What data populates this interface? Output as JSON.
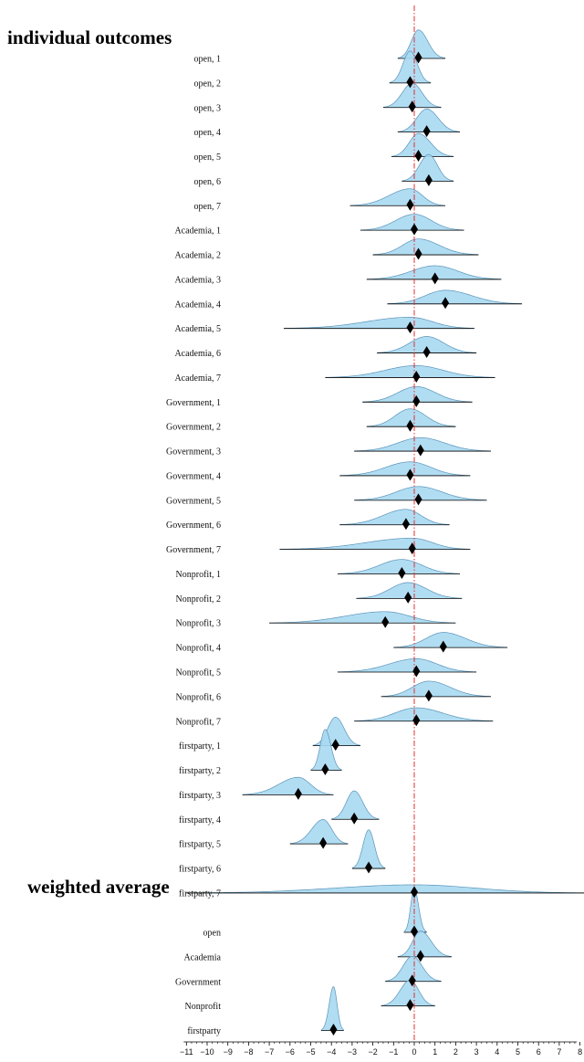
{
  "chart_data": {
    "type": "ridgeline",
    "xlim": [
      -11,
      8
    ],
    "xticks": [
      -11,
      -10,
      -9,
      -8,
      -7,
      -6,
      -5,
      -4,
      -3,
      -2,
      -1,
      0,
      1,
      2,
      3,
      4,
      5,
      6,
      7,
      8
    ],
    "reference_line_x": 0,
    "colors": {
      "fill": "#a9d9f2",
      "stroke": "#5a93b8",
      "reference_line": "#e03030",
      "marker": "#000000"
    },
    "sections": [
      {
        "title": "individual outcomes",
        "rows": [
          {
            "label": "open, 1",
            "estimate": 0.2,
            "lower": -0.8,
            "upper": 1.5
          },
          {
            "label": "open, 2",
            "estimate": -0.2,
            "lower": -1.2,
            "upper": 0.8
          },
          {
            "label": "open, 3",
            "estimate": -0.1,
            "lower": -1.5,
            "upper": 1.3
          },
          {
            "label": "open, 4",
            "estimate": 0.6,
            "lower": -0.8,
            "upper": 2.2
          },
          {
            "label": "open, 5",
            "estimate": 0.2,
            "lower": -1.1,
            "upper": 1.9
          },
          {
            "label": "open, 6",
            "estimate": 0.7,
            "lower": -0.6,
            "upper": 1.9
          },
          {
            "label": "open, 7",
            "estimate": -0.2,
            "lower": -3.1,
            "upper": 1.5
          },
          {
            "label": "Academia, 1",
            "estimate": 0.0,
            "lower": -2.6,
            "upper": 2.4
          },
          {
            "label": "Academia, 2",
            "estimate": 0.2,
            "lower": -2.0,
            "upper": 3.1
          },
          {
            "label": "Academia, 3",
            "estimate": 1.0,
            "lower": -2.3,
            "upper": 4.2
          },
          {
            "label": "Academia, 4",
            "estimate": 1.5,
            "lower": -1.3,
            "upper": 5.2
          },
          {
            "label": "Academia, 5",
            "estimate": -0.2,
            "lower": -6.3,
            "upper": 2.9
          },
          {
            "label": "Academia, 6",
            "estimate": 0.6,
            "lower": -1.8,
            "upper": 3.0
          },
          {
            "label": "Academia, 7",
            "estimate": 0.1,
            "lower": -4.3,
            "upper": 3.9
          },
          {
            "label": "Government, 1",
            "estimate": 0.1,
            "lower": -2.5,
            "upper": 2.8
          },
          {
            "label": "Government, 2",
            "estimate": -0.2,
            "lower": -2.3,
            "upper": 2.0
          },
          {
            "label": "Government, 3",
            "estimate": 0.3,
            "lower": -2.9,
            "upper": 3.7
          },
          {
            "label": "Government, 4",
            "estimate": -0.2,
            "lower": -3.6,
            "upper": 2.7
          },
          {
            "label": "Government, 5",
            "estimate": 0.2,
            "lower": -2.9,
            "upper": 3.5
          },
          {
            "label": "Government, 6",
            "estimate": -0.4,
            "lower": -3.6,
            "upper": 1.7
          },
          {
            "label": "Government, 7",
            "estimate": -0.1,
            "lower": -6.5,
            "upper": 2.7
          },
          {
            "label": "Nonprofit, 1",
            "estimate": -0.6,
            "lower": -3.7,
            "upper": 2.2
          },
          {
            "label": "Nonprofit, 2",
            "estimate": -0.3,
            "lower": -2.8,
            "upper": 2.3
          },
          {
            "label": "Nonprofit, 3",
            "estimate": -1.4,
            "lower": -7.0,
            "upper": 2.0
          },
          {
            "label": "Nonprofit, 4",
            "estimate": 1.4,
            "lower": -1.0,
            "upper": 4.5
          },
          {
            "label": "Nonprofit, 5",
            "estimate": 0.1,
            "lower": -3.7,
            "upper": 3.0
          },
          {
            "label": "Nonprofit, 6",
            "estimate": 0.7,
            "lower": -1.6,
            "upper": 3.7
          },
          {
            "label": "Nonprofit, 7",
            "estimate": 0.1,
            "lower": -2.9,
            "upper": 3.8
          },
          {
            "label": "firstparty, 1",
            "estimate": -3.8,
            "lower": -4.9,
            "upper": -2.6
          },
          {
            "label": "firstparty, 2",
            "estimate": -4.3,
            "lower": -5.0,
            "upper": -3.5
          },
          {
            "label": "firstparty, 3",
            "estimate": -5.6,
            "lower": -8.3,
            "upper": -3.9
          },
          {
            "label": "firstparty, 4",
            "estimate": -2.9,
            "lower": -4.0,
            "upper": -1.7
          },
          {
            "label": "firstparty, 5",
            "estimate": -4.4,
            "lower": -6.0,
            "upper": -3.2
          },
          {
            "label": "firstparty, 6",
            "estimate": -2.2,
            "lower": -3.0,
            "upper": -1.4
          },
          {
            "label": "firstparty, 7",
            "estimate": 0.0,
            "lower": -11.0,
            "upper": 8.5
          }
        ]
      },
      {
        "title": "weighted average",
        "rows": [
          {
            "label": "open",
            "estimate": 0.0,
            "lower": -0.5,
            "upper": 0.6
          },
          {
            "label": "Academia",
            "estimate": 0.3,
            "lower": -0.8,
            "upper": 1.8
          },
          {
            "label": "Government",
            "estimate": -0.1,
            "lower": -1.4,
            "upper": 1.3
          },
          {
            "label": "Nonprofit",
            "estimate": -0.2,
            "lower": -1.6,
            "upper": 1.0
          },
          {
            "label": "firstparty",
            "estimate": -3.9,
            "lower": -4.5,
            "upper": -3.4
          }
        ]
      }
    ]
  }
}
